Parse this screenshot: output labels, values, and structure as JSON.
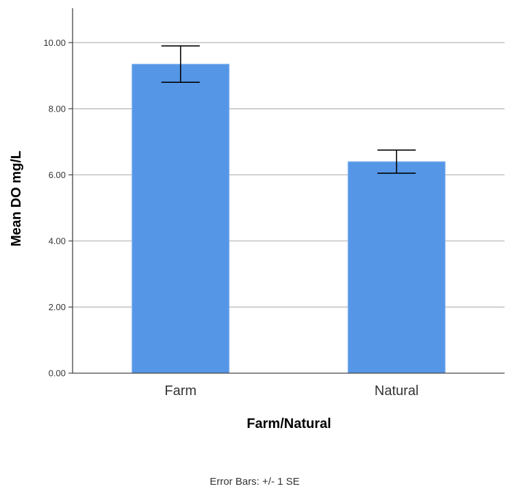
{
  "chart_data": {
    "type": "bar",
    "categories": [
      "Farm",
      "Natural"
    ],
    "values": [
      9.35,
      6.4
    ],
    "error_bars": {
      "lower": [
        8.8,
        6.05
      ],
      "upper": [
        9.9,
        6.75
      ]
    },
    "xlabel": "Farm/Natural",
    "ylabel": "Mean DO mg/L",
    "ylim": [
      0,
      11
    ],
    "yticks": [
      0,
      2,
      4,
      6,
      8,
      10
    ],
    "ytick_labels": [
      "0.00",
      "2.00",
      "4.00",
      "6.00",
      "8.00",
      "10.00"
    ],
    "grid": true,
    "footnote": "Error Bars: +/- 1 SE",
    "colors": {
      "bar": "#5596e6",
      "bar_edge": "#8fbaf0",
      "grid": "#b9b9b9",
      "axis": "#444444",
      "error_bar": "#000000"
    }
  }
}
